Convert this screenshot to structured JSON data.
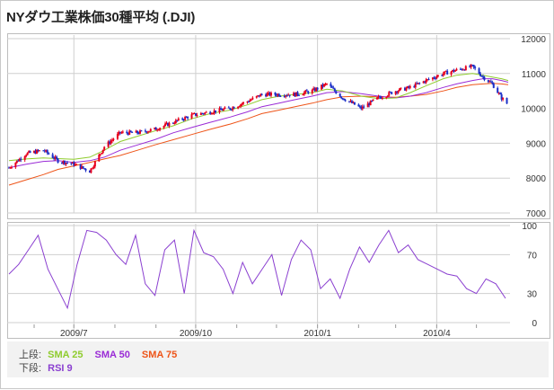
{
  "title": "NYダウ工業株価30種平均 (.DJI)",
  "legend": {
    "upper_label": "上段:",
    "lower_label": "下段:",
    "sma25": "SMA 25",
    "sma50": "SMA 50",
    "sma75": "SMA 75",
    "rsi9": "RSI 9"
  },
  "colors": {
    "up": "#e8001c",
    "down": "#1b2fc8",
    "sma25": "#8fcc2e",
    "sma50": "#9a2bd6",
    "sma75": "#ee5418",
    "rsi": "#8a3fd0",
    "grid": "#cfcfcf"
  },
  "chart_data": [
    {
      "type": "candlestick",
      "panel": "upper",
      "yticks": [
        "12000",
        "11000",
        "10000",
        "9000",
        "8000",
        "7000"
      ],
      "ylim": [
        7000,
        12000
      ],
      "xticks": [
        "2009/7",
        "2009/10",
        "2010/1",
        "2010/4"
      ],
      "x": [
        "2009/05/13",
        "2009/05/26",
        "2009/06/08",
        "2009/06/19",
        "2009/07/01",
        "2009/07/13",
        "2009/07/24",
        "2009/08/05",
        "2009/08/18",
        "2009/08/31",
        "2009/09/14",
        "2009/09/28",
        "2009/10/12",
        "2009/10/27",
        "2009/11/09",
        "2009/11/20",
        "2009/12/03",
        "2009/12/15",
        "2009/12/28",
        "2010/01/08",
        "2010/01/20",
        "2010/02/03",
        "2010/02/16",
        "2010/03/01",
        "2010/03/12",
        "2010/03/24",
        "2010/04/06",
        "2010/04/16",
        "2010/04/28",
        "2010/05/06",
        "2010/05/13",
        "2010/05/20",
        "2010/05/25"
      ],
      "close": [
        8300,
        8700,
        8800,
        8500,
        8400,
        8200,
        8900,
        9300,
        9300,
        9400,
        9600,
        9800,
        9900,
        10000,
        10200,
        10400,
        10400,
        10400,
        10500,
        10700,
        10300,
        10000,
        10300,
        10500,
        10600,
        10800,
        11000,
        11100,
        11200,
        10900,
        10700,
        10300,
        10100
      ],
      "sma25": [
        8500,
        8550,
        8580,
        8560,
        8540,
        8600,
        8800,
        9050,
        9200,
        9350,
        9500,
        9700,
        9850,
        9950,
        10100,
        10250,
        10350,
        10400,
        10450,
        10550,
        10500,
        10350,
        10280,
        10300,
        10450,
        10650,
        10850,
        10950,
        11000,
        10950,
        10900,
        10850,
        10800
      ],
      "sma50": [
        8300,
        8400,
        8480,
        8500,
        8450,
        8500,
        8600,
        8800,
        8950,
        9100,
        9300,
        9450,
        9600,
        9750,
        9900,
        10050,
        10150,
        10250,
        10350,
        10450,
        10480,
        10420,
        10350,
        10300,
        10350,
        10450,
        10600,
        10700,
        10800,
        10850,
        10850,
        10800,
        10750
      ],
      "sma75": [
        7800,
        7950,
        8100,
        8250,
        8350,
        8450,
        8550,
        8650,
        8800,
        8950,
        9100,
        9250,
        9400,
        9550,
        9700,
        9850,
        9950,
        10050,
        10150,
        10250,
        10330,
        10350,
        10330,
        10320,
        10350,
        10400,
        10500,
        10600,
        10680,
        10700,
        10720,
        10700,
        10680
      ]
    },
    {
      "type": "line",
      "panel": "lower",
      "series": [
        {
          "name": "RSI 9",
          "values": [
            50,
            60,
            75,
            90,
            55,
            35,
            15,
            60,
            95,
            93,
            85,
            70,
            60,
            90,
            40,
            28,
            75,
            85,
            30,
            95,
            72,
            68,
            55,
            30,
            62,
            40,
            55,
            70,
            28,
            65,
            85,
            75,
            35,
            45,
            25,
            55,
            78,
            62,
            80,
            95,
            72,
            80,
            65,
            60,
            55,
            50,
            48,
            35,
            30,
            45,
            40,
            25
          ]
        }
      ],
      "yticks": [
        "100",
        "70",
        "30",
        "0"
      ],
      "ylim": [
        0,
        100
      ]
    }
  ]
}
